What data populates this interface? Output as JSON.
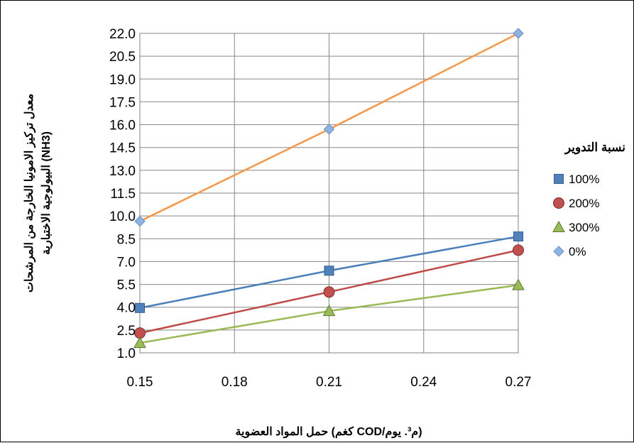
{
  "chart_data": {
    "type": "line",
    "x": [
      0.15,
      0.21,
      0.27
    ],
    "x_ticks": [
      "0.15",
      "0.18",
      "0.21",
      "0.24",
      "0.27"
    ],
    "y_ticks": [
      "1.0",
      "2.5",
      "4.0",
      "5.5",
      "7.0",
      "8.5",
      "10.0",
      "11.5",
      "13.0",
      "14.5",
      "16.0",
      "17.5",
      "19.0",
      "20.5",
      "22.0"
    ],
    "xlim": [
      0.15,
      0.27
    ],
    "ylim": [
      1.0,
      22.0
    ],
    "grid": true,
    "xlabel": "حمل المواد العضوية (كغم COD/م³. يوم)",
    "ylabel_line1": "معدل تركيز الامونيا الخارجة من المرشحات",
    "ylabel_line2": "البيولوجية الاختبارية (NH3)",
    "legend_title": "نسبة التدوير",
    "legend_position": "right",
    "series": [
      {
        "name": "100%",
        "values": [
          3.95,
          6.4,
          8.65
        ],
        "color": "#4a7ebb",
        "marker": "square",
        "marker_fill": "#4f81bd"
      },
      {
        "name": "200%",
        "values": [
          2.3,
          5.0,
          7.75
        ],
        "color": "#be4b48",
        "marker": "circle",
        "marker_fill": "#c0504d"
      },
      {
        "name": "300%",
        "values": [
          1.65,
          3.75,
          5.45
        ],
        "color": "#98b954",
        "marker": "triangle",
        "marker_fill": "#9bbb59"
      },
      {
        "name": "0%",
        "values": [
          9.65,
          15.7,
          22.0
        ],
        "color": "#f79646",
        "marker": "diamond",
        "marker_fill": "#8db3e2"
      }
    ]
  }
}
